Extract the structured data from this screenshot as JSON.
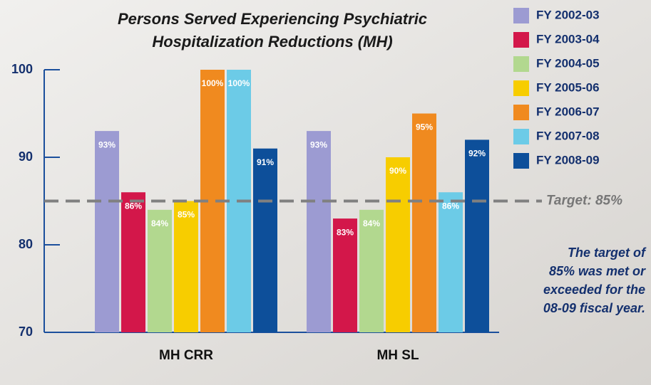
{
  "chart_data": {
    "type": "bar",
    "title": [
      "Persons Served Experiencing Psychiatric",
      "Hospitalization Reductions (MH)"
    ],
    "categories": [
      "MH CRR",
      "MH SL"
    ],
    "series": [
      {
        "name": "FY 2002-03",
        "color": "#9c9bd2",
        "values": [
          93,
          93
        ],
        "value_labels": [
          "93%",
          "93%"
        ]
      },
      {
        "name": "FY 2003-04",
        "color": "#d3174a",
        "values": [
          86,
          83
        ],
        "value_labels": [
          "86%",
          "83%"
        ]
      },
      {
        "name": "FY 2004-05",
        "color": "#b2d88f",
        "values": [
          84,
          84
        ],
        "value_labels": [
          "84%",
          "84%"
        ]
      },
      {
        "name": "FY 2005-06",
        "color": "#f7cd00",
        "values": [
          85,
          90
        ],
        "value_labels": [
          "85%",
          "90%"
        ]
      },
      {
        "name": "FY 2006-07",
        "color": "#f08a1f",
        "values": [
          100,
          95
        ],
        "value_labels": [
          "100%",
          "95%"
        ]
      },
      {
        "name": "FY 2007-08",
        "color": "#6ccbe7",
        "values": [
          100,
          86
        ],
        "value_labels": [
          "100%",
          "86%"
        ]
      },
      {
        "name": "FY 2008-09",
        "color": "#0d4f9a",
        "values": [
          91,
          92
        ],
        "value_labels": [
          "91%",
          "92%"
        ]
      }
    ],
    "ylim": [
      70,
      100
    ],
    "yticks": [
      70,
      80,
      90,
      100
    ],
    "target": {
      "value": 85,
      "label": "Target: 85%"
    },
    "annotation": [
      "The target of",
      "85% was met or",
      "exceeded for the",
      "08-09 fiscal year."
    ]
  }
}
